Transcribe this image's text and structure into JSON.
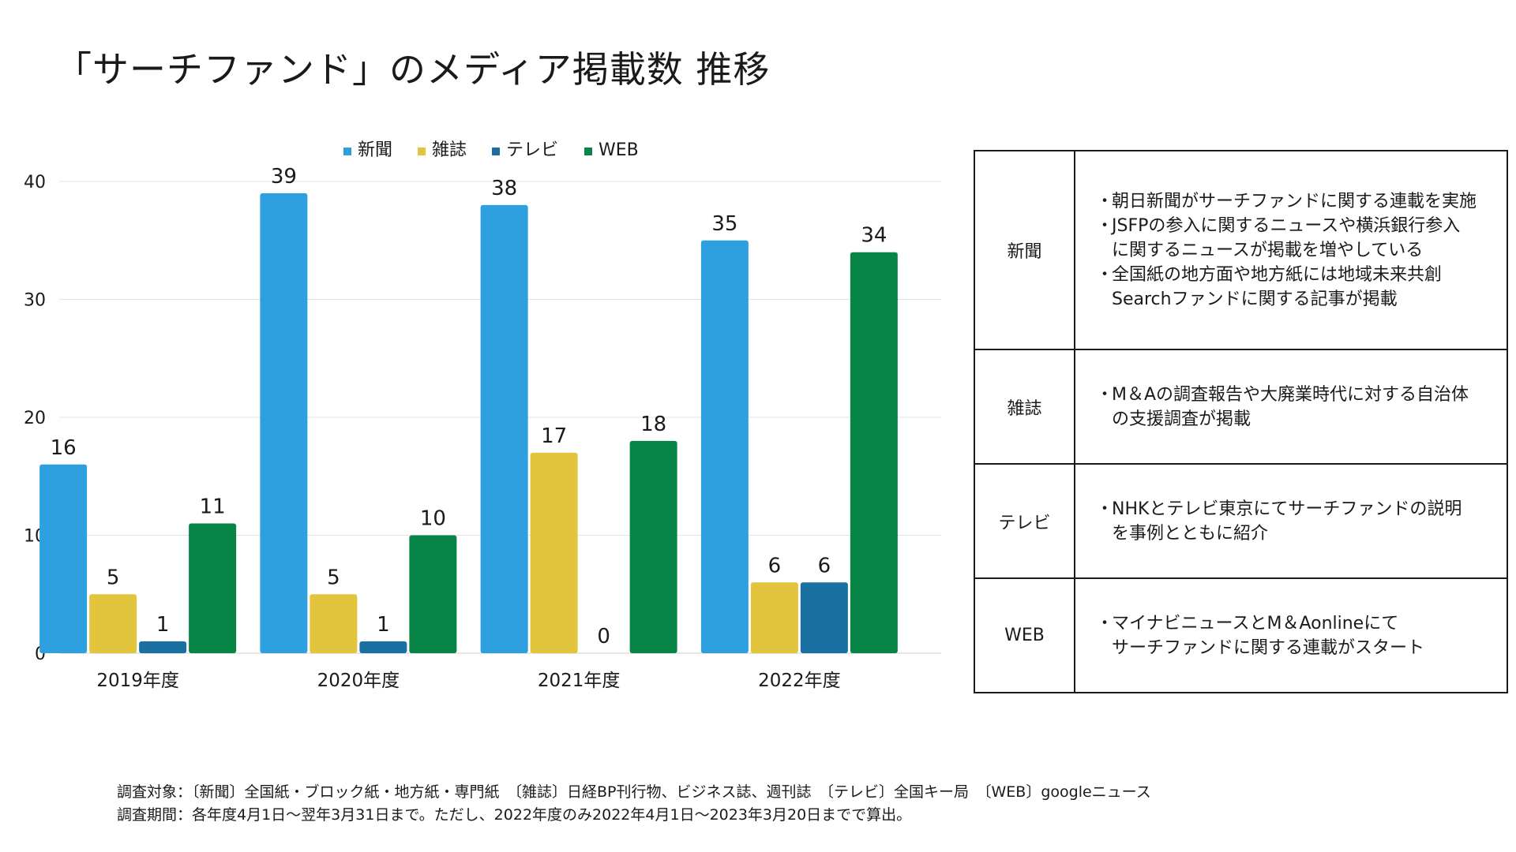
{
  "title": "「サーチファンド」のメディア掲載数 推移",
  "colors": {
    "新聞": "#2e9fdf",
    "雑誌": "#e3c43d",
    "テレビ": "#1a70a0",
    "WEB": "#078547",
    "grid": "#e3e3e3",
    "text": "#1a1a1a"
  },
  "chart_data": {
    "type": "bar",
    "categories": [
      "2019年度",
      "2020年度",
      "2021年度",
      "2022年度"
    ],
    "series": [
      {
        "name": "新聞",
        "values": [
          16,
          39,
          38,
          35
        ]
      },
      {
        "name": "雑誌",
        "values": [
          5,
          5,
          17,
          6
        ]
      },
      {
        "name": "テレビ",
        "values": [
          1,
          1,
          0,
          6
        ]
      },
      {
        "name": "WEB",
        "values": [
          11,
          10,
          18,
          34
        ]
      }
    ],
    "ylim": [
      0,
      40
    ],
    "yticks": [
      0,
      10,
      20,
      30,
      40
    ],
    "grid": true,
    "legend": "top-center",
    "data_labels": true
  },
  "table": {
    "rows": [
      {
        "category": "新聞",
        "bullets": [
          {
            "lines": [
              "朝日新聞がサーチファンドに関する連載を実施"
            ]
          },
          {
            "lines": [
              "JSFPの参入に関するニュースや横浜銀行参入",
              "に関するニュースが掲載を増やしている"
            ]
          },
          {
            "lines": [
              "全国紙の地方面や地方紙には地域未来共創",
              "Searchファンドに関する記事が掲載"
            ]
          }
        ]
      },
      {
        "category": "雑誌",
        "bullets": [
          {
            "lines": [
              "M＆Aの調査報告や大廃業時代に対する自治体",
              "の支援調査が掲載"
            ]
          }
        ]
      },
      {
        "category": "テレビ",
        "bullets": [
          {
            "lines": [
              "NHKとテレビ東京にてサーチファンドの説明",
              "を事例とともに紹介"
            ]
          }
        ]
      },
      {
        "category": "WEB",
        "bullets": [
          {
            "lines": [
              "マイナビニュースとM＆Aonlineにて",
              "サーチファンドに関する連載がスタート"
            ]
          }
        ]
      }
    ]
  },
  "footnote": {
    "line1": "調査対象：〔新聞〕全国紙・ブロック紙・地方紙・専門紙　〔雑誌〕日経BP刊行物、ビジネス誌、週刊誌　〔テレビ〕全国キー局　〔WEB〕googleニュース",
    "line2": "調査期間：各年度4月1日〜翌年3月31日まで。ただし、2022年度のみ2022年4月1日〜2023年3月20日までで算出。"
  }
}
